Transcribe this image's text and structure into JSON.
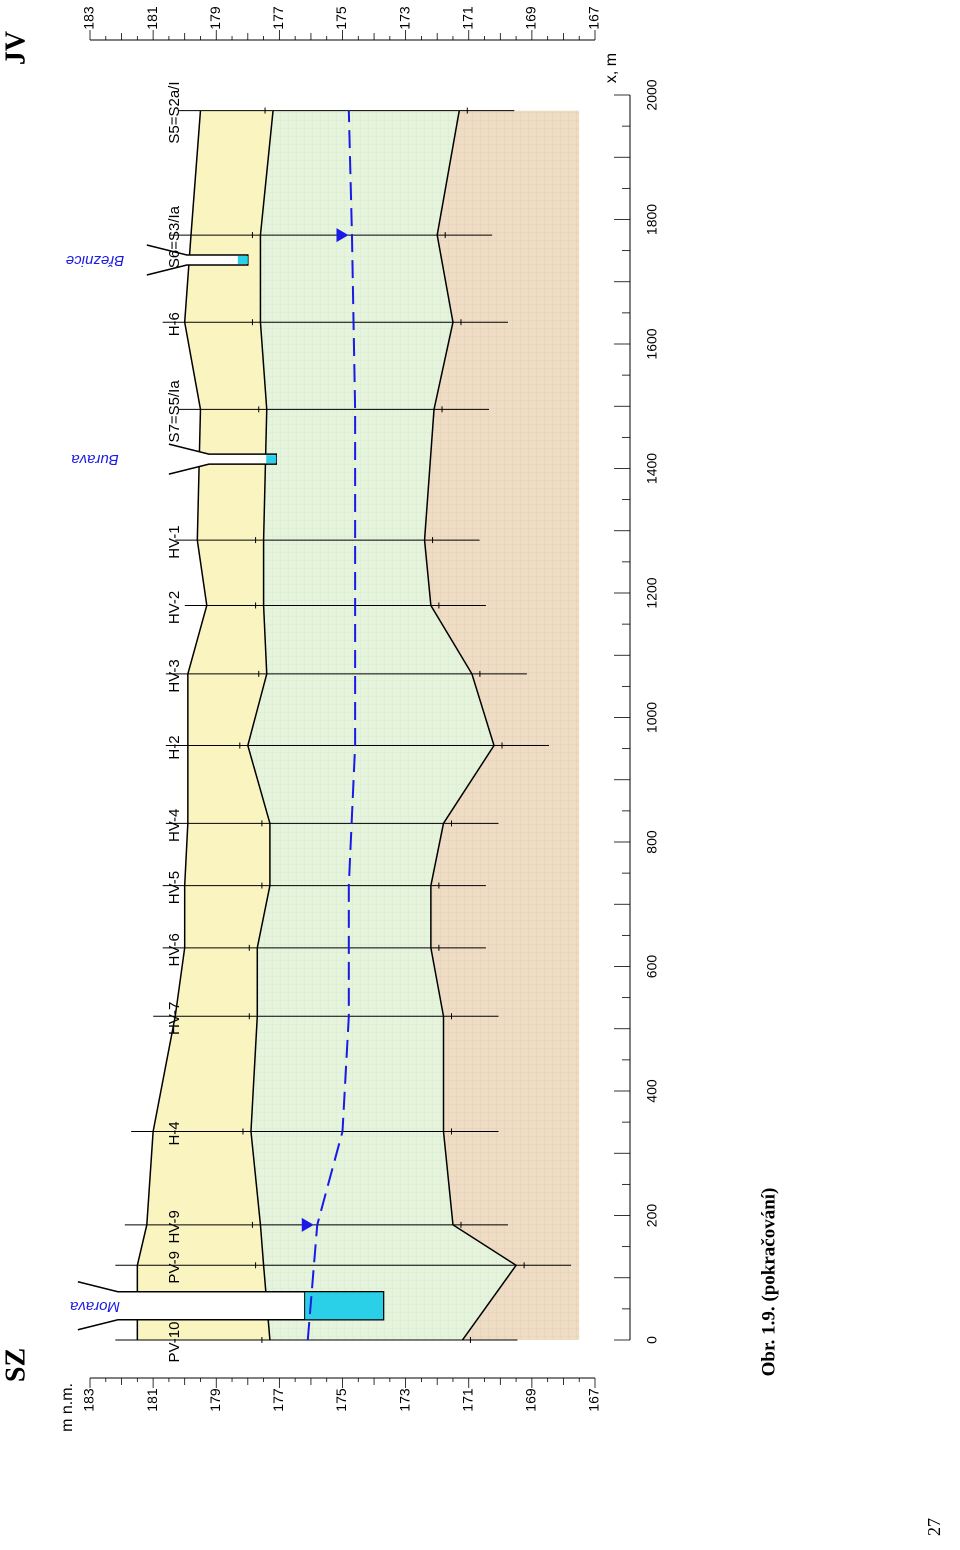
{
  "orientation": {
    "left": "SZ",
    "right": "JV"
  },
  "caption": "Obr. 1.9. (pokračování)",
  "page_number": "27",
  "chart_data": {
    "type": "cross-section",
    "xlabel": "x, m",
    "ylabel": "m n.m.",
    "xlim": [
      0,
      2000
    ],
    "ylim": [
      167,
      183
    ],
    "x_ticks": [
      0,
      200,
      400,
      600,
      800,
      1000,
      1200,
      1400,
      1600,
      1800,
      2000
    ],
    "y_ticks": [
      167,
      169,
      171,
      173,
      175,
      177,
      179,
      181,
      183
    ],
    "boreholes": [
      {
        "name": "PV-10",
        "x": 0,
        "surface": 181.5,
        "sand_top": 177.3,
        "base": 171.2
      },
      {
        "name": "PV-9",
        "x": 120,
        "surface": 181.5,
        "sand_top": 177.5,
        "base": 169.5
      },
      {
        "name": "HV-9",
        "x": 185,
        "surface": 181.2,
        "sand_top": 177.6,
        "base": 171.5
      },
      {
        "name": "H-4",
        "x": 335,
        "surface": 181.0,
        "sand_top": 177.9,
        "base": 171.8
      },
      {
        "name": "HV-7",
        "x": 520,
        "surface": 180.3,
        "sand_top": 177.7,
        "base": 171.8
      },
      {
        "name": "HV-6",
        "x": 630,
        "surface": 180.0,
        "sand_top": 177.7,
        "base": 172.2
      },
      {
        "name": "HV-5",
        "x": 730,
        "surface": 180.0,
        "sand_top": 177.3,
        "base": 172.2
      },
      {
        "name": "HV-4",
        "x": 830,
        "surface": 179.9,
        "sand_top": 177.3,
        "base": 171.8
      },
      {
        "name": "H-2",
        "x": 955,
        "surface": 179.9,
        "sand_top": 178.0,
        "base": 170.2
      },
      {
        "name": "HV-3",
        "x": 1070,
        "surface": 179.9,
        "sand_top": 177.4,
        "base": 170.9
      },
      {
        "name": "HV-2",
        "x": 1180,
        "surface": 179.3,
        "sand_top": 177.5,
        "base": 172.2
      },
      {
        "name": "HV-1",
        "x": 1285,
        "surface": 179.6,
        "sand_top": 177.5,
        "base": 172.4
      },
      {
        "name": "S7=S5/Ia",
        "x": 1495,
        "surface": 179.5,
        "sand_top": 177.4,
        "base": 172.1
      },
      {
        "name": "H-6",
        "x": 1635,
        "surface": 180.0,
        "sand_top": 177.6,
        "base": 171.5
      },
      {
        "name": "S6=S3/Ia",
        "x": 1775,
        "surface": 179.8,
        "sand_top": 177.6,
        "base": 172.0
      },
      {
        "name": "S5=S2a/I",
        "x": 1975,
        "surface": 179.5,
        "sand_top": 177.2,
        "base": 171.3
      }
    ],
    "water_table": [
      {
        "x": 0,
        "y": 176.1
      },
      {
        "x": 185,
        "y": 175.8
      },
      {
        "x": 335,
        "y": 175.0
      },
      {
        "x": 520,
        "y": 174.8
      },
      {
        "x": 730,
        "y": 174.8
      },
      {
        "x": 955,
        "y": 174.6
      },
      {
        "x": 1180,
        "y": 174.6
      },
      {
        "x": 1495,
        "y": 174.6
      },
      {
        "x": 1775,
        "y": 174.7
      },
      {
        "x": 1975,
        "y": 174.8
      }
    ],
    "water_marks": [
      {
        "x": 185,
        "y": 176.1
      },
      {
        "x": 1775,
        "y": 175.0
      }
    ],
    "streams": [
      {
        "name": "Morava",
        "x": 55,
        "bank": 181.8,
        "bottom": 173.7,
        "water": 176.2
      },
      {
        "name": "Burava",
        "x": 1415,
        "bank": 180.5,
        "bottom": 177.1
      },
      {
        "name": "Březnice",
        "x": 1735,
        "bank": 181.2,
        "bottom": 178.0
      }
    ],
    "colors": {
      "cover": "#faf5c0",
      "sand": "#e8f5e0",
      "base": "#f0dcc4",
      "water": "#1a1ae6",
      "river": "#2ad0e8"
    }
  }
}
